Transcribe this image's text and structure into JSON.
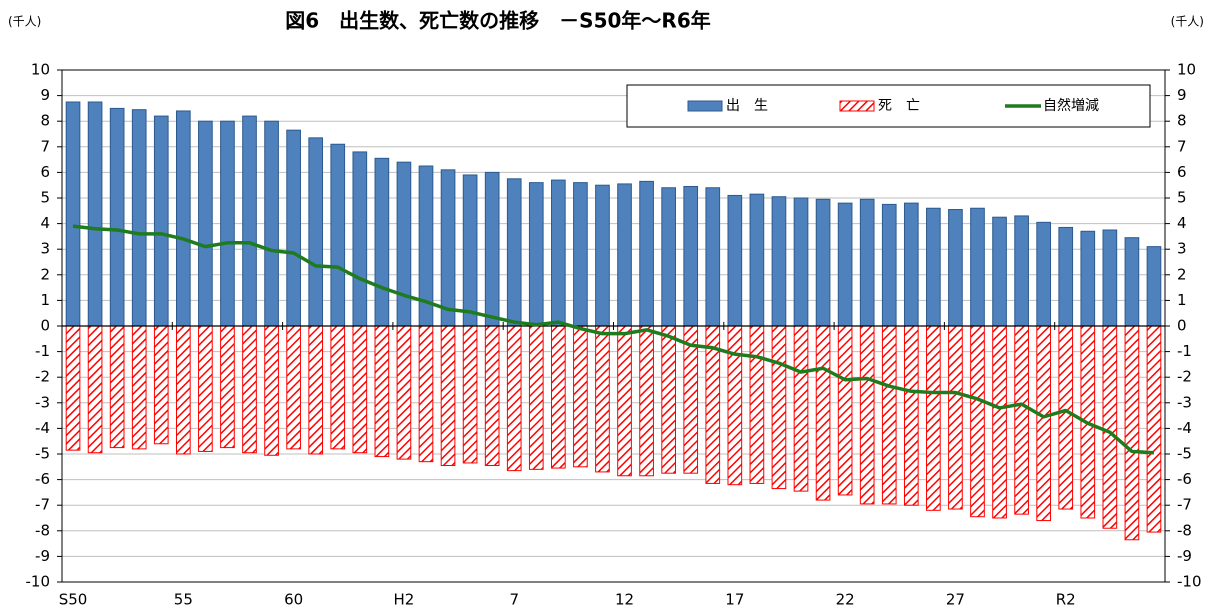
{
  "chart_data": {
    "type": "bar_line",
    "title": "図6　出生数、死亡数の推移　－S50年～R6年",
    "y_unit": "(千人)",
    "y2_unit": "(千人)",
    "categories": [
      "S50",
      null,
      null,
      null,
      null,
      "55",
      null,
      null,
      null,
      null,
      "60",
      null,
      null,
      null,
      null,
      "H2",
      null,
      null,
      null,
      null,
      "7",
      null,
      null,
      null,
      null,
      "12",
      null,
      null,
      null,
      null,
      "17",
      null,
      null,
      null,
      null,
      "22",
      null,
      null,
      null,
      null,
      "27",
      null,
      null,
      null,
      null,
      "R2",
      null,
      null,
      null,
      null
    ],
    "series": [
      {
        "name": "出　生",
        "type": "bar",
        "color": "#4f81bd",
        "values": [
          8.75,
          8.75,
          8.5,
          8.45,
          8.2,
          8.4,
          8.0,
          8.0,
          8.2,
          8.0,
          7.65,
          7.35,
          7.1,
          6.8,
          6.55,
          6.4,
          6.25,
          6.1,
          5.9,
          6.0,
          5.75,
          5.6,
          5.7,
          5.6,
          5.5,
          5.55,
          5.65,
          5.4,
          5.45,
          5.4,
          5.1,
          5.15,
          5.05,
          5.0,
          4.95,
          4.8,
          4.95,
          4.75,
          4.8,
          4.6,
          4.55,
          4.6,
          4.25,
          4.3,
          4.05,
          3.85,
          3.7,
          3.75,
          3.45,
          3.1
        ]
      },
      {
        "name": "死　亡",
        "type": "bar",
        "color": "#ff0000",
        "values": [
          -4.85,
          -4.95,
          -4.75,
          -4.8,
          -4.6,
          -5.0,
          -4.9,
          -4.75,
          -4.95,
          -5.05,
          -4.8,
          -5.0,
          -4.8,
          -4.95,
          -5.1,
          -5.2,
          -5.3,
          -5.45,
          -5.35,
          -5.45,
          -5.65,
          -5.6,
          -5.55,
          -5.5,
          -5.7,
          -5.85,
          -5.85,
          -5.75,
          -5.75,
          -6.15,
          -6.2,
          -6.15,
          -6.35,
          -6.45,
          -6.8,
          -6.6,
          -6.95,
          -6.95,
          -7.0,
          -7.2,
          -7.15,
          -7.45,
          -7.5,
          -7.35,
          -7.6,
          -7.15,
          -7.5,
          -7.9,
          -8.35,
          -8.05
        ]
      },
      {
        "name": "自然増減",
        "type": "line",
        "color": "#1e7b1e",
        "values": [
          3.9,
          3.8,
          3.75,
          3.6,
          3.6,
          3.4,
          3.1,
          3.25,
          3.25,
          2.95,
          2.85,
          2.35,
          2.3,
          1.85,
          1.5,
          1.2,
          0.95,
          0.65,
          0.55,
          0.35,
          0.15,
          0.05,
          0.15,
          -0.1,
          -0.3,
          -0.3,
          -0.15,
          -0.4,
          -0.75,
          -0.85,
          -1.1,
          -1.2,
          -1.45,
          -1.8,
          -1.65,
          -2.1,
          -2.05,
          -2.35,
          -2.55,
          -2.6,
          -2.6,
          -2.85,
          -3.2,
          -3.05,
          -3.55,
          -3.3,
          -3.8,
          -4.15,
          -4.9,
          -4.95
        ]
      }
    ],
    "ylim": [
      -10,
      10
    ],
    "yticks": [
      -10,
      -9,
      -8,
      -7,
      -6,
      -5,
      -4,
      -3,
      -2,
      -1,
      0,
      1,
      2,
      3,
      4,
      5,
      6,
      7,
      8,
      9,
      10
    ],
    "y2lim": [
      -10,
      10
    ],
    "y2ticks": [
      -10,
      -9,
      -8,
      -7,
      -6,
      -5,
      -4,
      -3,
      -2,
      -1,
      0,
      1,
      2,
      3,
      4,
      5,
      6,
      7,
      8,
      9,
      10
    ],
    "grid": true,
    "legend": "upper right"
  }
}
